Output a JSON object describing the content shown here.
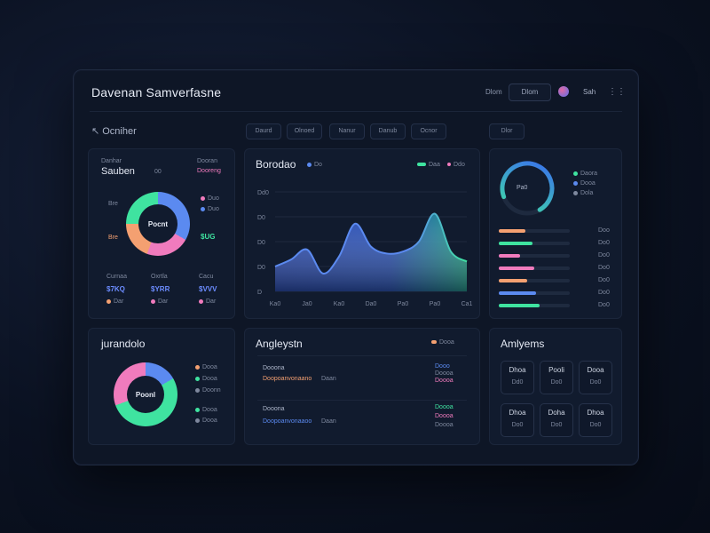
{
  "app": {
    "title": "Davenan Samverfasne",
    "top_text": "Dlom",
    "top_button": "Dlom",
    "user_label": "Sah",
    "menu_icon": "more-icon"
  },
  "filters": {
    "overview_label": "Ocniher",
    "chips": [
      "Daurd",
      "Olnoed",
      "Nanur",
      "Danub",
      "Ocnor"
    ],
    "right_chip": "Dlor"
  },
  "segments_card": {
    "small_label": "Danhar",
    "title": "Sauben",
    "title_tag": "00",
    "tag_right": "Dooran",
    "tag_right2": "Dooreng",
    "donut_center": "Pocnt",
    "legend": [
      {
        "label": "Duo",
        "color": "#f07bbd"
      },
      {
        "label": "Duo",
        "color": "#5b8af0"
      }
    ],
    "side_label_left": "Bre",
    "side_label_left2": "Bre",
    "highlight_value": "$UG",
    "stats": [
      {
        "label": "Curnaa",
        "value": "$7KQ",
        "color": "#6c8cff"
      },
      {
        "label": "Oxrtla",
        "value": "$YRR",
        "color": "#6c8cff"
      },
      {
        "label": "Cacu",
        "value": "$VVV",
        "color": "#6c8cff"
      }
    ],
    "stat_footers": [
      "Dar",
      "Dar",
      "Dar"
    ],
    "colors": [
      "#5b8af0",
      "#f07bbd",
      "#3fe3a0",
      "#f4a071"
    ]
  },
  "trend_card": {
    "title": "Borodao",
    "legend_left": "Do",
    "legend_right1": "Daa",
    "legend_right2": "Ddo",
    "y_ticks": [
      "Dd0",
      "D0",
      "D0",
      "D0",
      "D"
    ],
    "x_ticks": [
      "Ka0",
      "Ja0",
      "Ka0",
      "Da0",
      "Pa0",
      "Pa0",
      "Ca1"
    ]
  },
  "chart_data": {
    "type": "area",
    "x": [
      0,
      1,
      2,
      3,
      4,
      5,
      6,
      7,
      8,
      9,
      10,
      11,
      12
    ],
    "values": [
      25,
      32,
      42,
      18,
      35,
      68,
      45,
      38,
      40,
      50,
      78,
      40,
      30
    ],
    "ylim": [
      0,
      100
    ],
    "colors": [
      "#3a6df0",
      "#2fd3a0"
    ]
  },
  "progress_card": {
    "gauge_value": 0.72,
    "gauge_center": "Pa0",
    "gauge_legend": [
      {
        "label": "Daora",
        "color": "#3fe3a0"
      },
      {
        "label": "Dooa",
        "color": "#5b8af0"
      },
      {
        "label": "Dola",
        "color": "#7e889e"
      }
    ],
    "bars": [
      {
        "fill": 0.38,
        "color": "#f4a071",
        "label": "Doo"
      },
      {
        "fill": 0.48,
        "color": "#3fe3a0",
        "label": "Do0"
      },
      {
        "fill": 0.3,
        "color": "#f07bbd",
        "label": "Do0"
      },
      {
        "fill": 0.5,
        "color": "#f07bbd",
        "label": "Do0"
      },
      {
        "fill": 0.4,
        "color": "#f4a071",
        "label": "Do0"
      },
      {
        "fill": 0.52,
        "color": "#5b8af0",
        "label": "Do0"
      },
      {
        "fill": 0.58,
        "color": "#3fe3a0",
        "label": "Do0"
      }
    ]
  },
  "segment2_card": {
    "title": "jurandolo",
    "donut_center": "Poonl",
    "legend": [
      {
        "label": "Dooa",
        "color": "#f4a071"
      },
      {
        "label": "Dooa",
        "color": "#3fe3a0"
      },
      {
        "label": "Doonn",
        "color": "#7e889e"
      },
      {
        "label": "Dooa",
        "color": "#3fe3a0"
      },
      {
        "label": "Dooa",
        "color": "#7e889e"
      }
    ],
    "colors": [
      "#5b8af0",
      "#f07bbd",
      "#3fe3a0"
    ]
  },
  "analysis_card": {
    "title": "Angleystn",
    "legend_label": "Dooa",
    "rows": [
      {
        "name": "Dooona",
        "codes": "Doopoanvonaano",
        "meta": "Daan",
        "right1": "Dooo",
        "right2": "Doooa",
        "right3": "Doooa"
      },
      {
        "name": "Dooona",
        "codes": "Doopoanvonaaoo",
        "meta": "Daan",
        "right1": "Doooa",
        "right2": "Doooa",
        "right3": "Doooa"
      }
    ]
  },
  "analytics_card": {
    "title": "Amlyems",
    "stats": [
      {
        "l1": "Dhoa",
        "l2": "Dd0"
      },
      {
        "l1": "Pooli",
        "l2": "Do0"
      },
      {
        "l1": "Dooa",
        "l2": "Do0"
      },
      {
        "l1": "Dhoa",
        "l2": "Do0"
      },
      {
        "l1": "Doha",
        "l2": "Do0"
      },
      {
        "l1": "Dhoa",
        "l2": "Do0"
      }
    ]
  }
}
